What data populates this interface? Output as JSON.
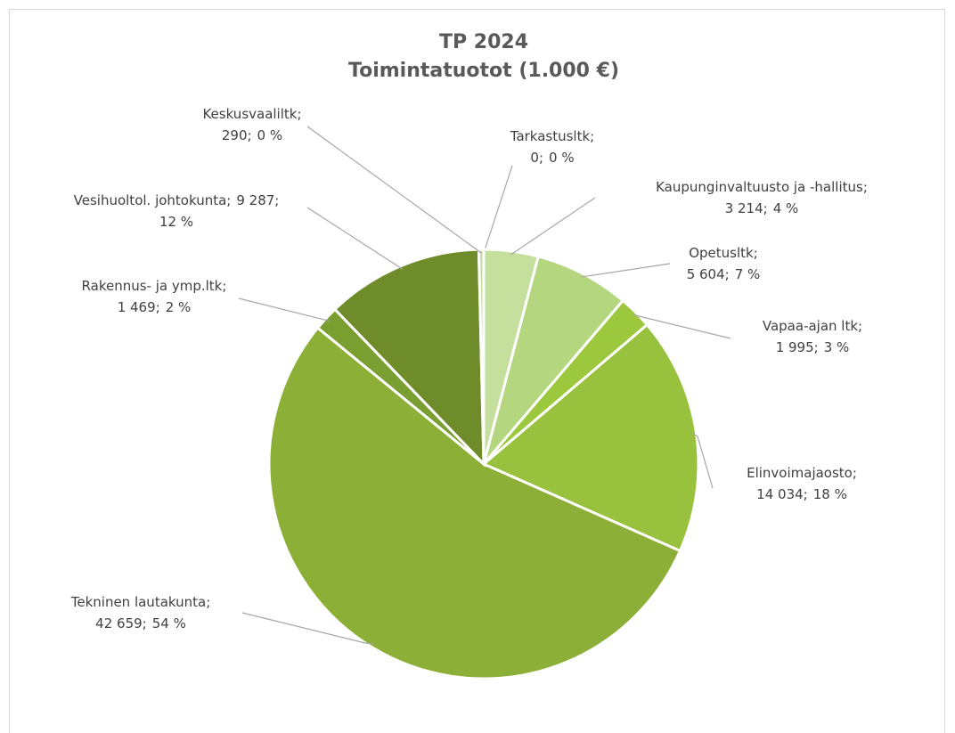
{
  "chart_data": {
    "type": "pie",
    "title": [
      "TP 2024",
      "Toimintatuotot (1.000 €)"
    ],
    "categories": [
      "Tarkastusltk;",
      "Kaupunginvaltuusto ja -hallitus;",
      "Opetusltk;",
      "Vapaa-ajan ltk;",
      "Elinvoimajaosto;",
      "Tekninen lautakunta;",
      "Rakennus- ja ymp.ltk;",
      "Vesihuoltol. johtokunta;",
      "Keskusvaaliltk;"
    ],
    "values": [
      0,
      3214,
      5604,
      1995,
      14034,
      42659,
      1469,
      9287,
      290
    ],
    "value_labels": [
      "0;",
      "3 214;",
      "5 604;",
      "1 995;",
      "14 034;",
      "42 659;",
      "1 469;",
      "9 287;",
      "290;"
    ],
    "percent_labels": [
      "0 %",
      "4 %",
      "7 %",
      "3 %",
      "18 %",
      "54 %",
      "2 %",
      "12 %",
      "0 %"
    ],
    "colors": [
      "#d6e6b8",
      "#c5df9c",
      "#b3d67f",
      "#9bc83c",
      "#98c13d",
      "#8caf37",
      "#789f30",
      "#6e8c29",
      "#c9dca6"
    ]
  }
}
